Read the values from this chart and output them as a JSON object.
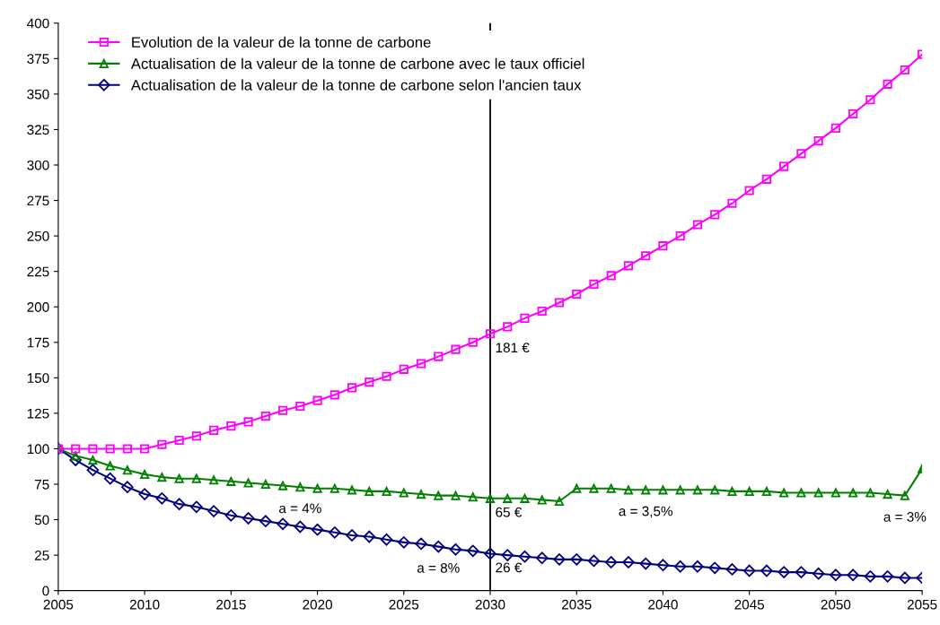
{
  "chart_data": {
    "type": "line",
    "x": [
      2005,
      2006,
      2007,
      2008,
      2009,
      2010,
      2011,
      2012,
      2013,
      2014,
      2015,
      2016,
      2017,
      2018,
      2019,
      2020,
      2021,
      2022,
      2023,
      2024,
      2025,
      2026,
      2027,
      2028,
      2029,
      2030,
      2031,
      2032,
      2033,
      2034,
      2035,
      2036,
      2037,
      2038,
      2039,
      2040,
      2041,
      2042,
      2043,
      2044,
      2045,
      2046,
      2047,
      2048,
      2049,
      2050,
      2051,
      2052,
      2053,
      2054,
      2055
    ],
    "series": [
      {
        "name": "Evolution de la valeur de la tonne de carbone",
        "color": "#ff00ff",
        "marker": "square",
        "values": [
          100,
          100,
          100,
          100,
          100,
          100,
          103,
          106,
          109,
          113,
          116,
          119,
          123,
          127,
          130,
          134,
          138,
          143,
          147,
          151,
          156,
          160,
          165,
          170,
          175,
          181,
          186,
          192,
          197,
          203,
          209,
          216,
          222,
          229,
          236,
          243,
          250,
          258,
          265,
          273,
          282,
          290,
          299,
          308,
          317,
          326,
          336,
          346,
          357,
          367,
          378
        ]
      },
      {
        "name": "Actualisation de la valeur de la tonne de carbone avec le taux officiel",
        "color": "#008000",
        "marker": "triangle",
        "values": [
          100,
          95,
          92,
          88,
          85,
          82,
          80,
          79,
          79,
          78,
          77,
          76,
          75,
          74,
          73,
          72,
          72,
          71,
          70,
          70,
          69,
          68,
          67,
          67,
          66,
          65,
          65,
          65,
          64,
          63,
          72,
          72,
          72,
          71,
          71,
          71,
          71,
          71,
          71,
          70,
          70,
          70,
          69,
          69,
          69,
          69,
          69,
          69,
          68,
          67,
          86
        ]
      },
      {
        "name": "Actualisation de la valeur de la tonne de carbone selon l'ancien taux",
        "color": "#000080",
        "marker": "diamond",
        "values": [
          100,
          92,
          85,
          79,
          73,
          68,
          65,
          61,
          59,
          56,
          53,
          51,
          49,
          47,
          45,
          43,
          41,
          39,
          38,
          36,
          34,
          33,
          31,
          29,
          28,
          26,
          25,
          24,
          23,
          22,
          22,
          21,
          20,
          20,
          19,
          18,
          17,
          17,
          16,
          15,
          14,
          14,
          13,
          13,
          12,
          11,
          11,
          10,
          10,
          9,
          9
        ]
      }
    ],
    "xlim": [
      2005,
      2055
    ],
    "xticks": [
      2005,
      2010,
      2015,
      2020,
      2025,
      2030,
      2035,
      2040,
      2045,
      2050,
      2055
    ],
    "ylim": [
      0,
      400
    ],
    "yticks": [
      0,
      25,
      50,
      75,
      100,
      125,
      150,
      175,
      200,
      225,
      250,
      275,
      300,
      325,
      350,
      375,
      400
    ],
    "ref_lines": [
      {
        "axis": "x",
        "value": 2030,
        "color": "#000000"
      }
    ],
    "annotations": [
      {
        "text": "181 €",
        "x": 2030,
        "y": 181
      },
      {
        "text": "65 €",
        "x": 2030,
        "y": 65
      },
      {
        "text": "26 €",
        "x": 2030,
        "y": 26
      },
      {
        "text": "a = 4%",
        "x": 2019,
        "y": 73
      },
      {
        "text": "a = 8%",
        "x": 2027,
        "y": 31
      },
      {
        "text": "a = 3,5%",
        "x": 2039,
        "y": 71
      },
      {
        "text": "a = 3%",
        "x": 2054,
        "y": 67
      }
    ],
    "legend": "top left",
    "grid": false,
    "line_style": "solid"
  }
}
